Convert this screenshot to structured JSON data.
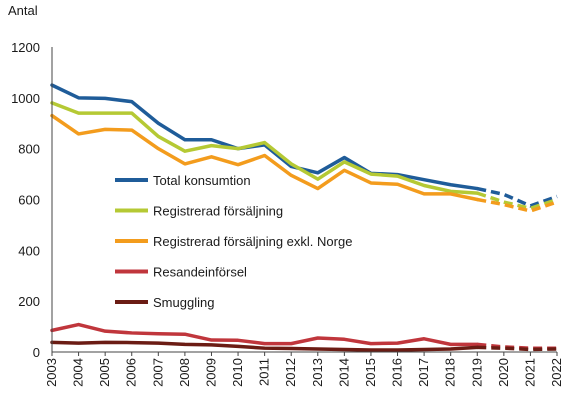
{
  "chart_data": {
    "type": "line",
    "title": "",
    "xlabel": "",
    "ylabel": "Antal",
    "ylim": [
      0,
      1200
    ],
    "yticks": [
      "0",
      "200",
      "400",
      "600",
      "800",
      "1000",
      "1200"
    ],
    "categories": [
      "2003",
      "2004",
      "2005",
      "2006",
      "2007",
      "2008",
      "2009",
      "2010",
      "2011",
      "2012",
      "2013",
      "2014",
      "2015",
      "2016",
      "2017",
      "2018",
      "2019",
      "2020",
      "2021",
      "2022"
    ],
    "grid": false,
    "legend_position": "center-left",
    "forecast_from": "2019",
    "series": [
      {
        "name": "Total konsumtion",
        "color": "#1f5c99",
        "values": [
          1050,
          1000,
          998,
          985,
          900,
          835,
          835,
          800,
          815,
          730,
          705,
          765,
          703,
          698,
          678,
          658,
          643,
          620,
          575,
          612
        ]
      },
      {
        "name": "Registrerad försäljning",
        "color": "#b5c934",
        "values": [
          980,
          940,
          940,
          940,
          848,
          790,
          812,
          800,
          824,
          740,
          680,
          748,
          700,
          692,
          655,
          632,
          625,
          590,
          565,
          600
        ]
      },
      {
        "name": "Registrerad försäljning exkl. Norge",
        "color": "#f39c1d",
        "values": [
          930,
          858,
          876,
          873,
          800,
          740,
          768,
          737,
          773,
          695,
          643,
          715,
          665,
          660,
          622,
          622,
          600,
          580,
          555,
          590
        ]
      },
      {
        "name": "Resandeinförsel",
        "color": "#c0363c",
        "values": [
          85,
          108,
          82,
          75,
          72,
          70,
          47,
          46,
          33,
          33,
          55,
          50,
          33,
          35,
          52,
          30,
          30,
          20,
          15,
          15
        ]
      },
      {
        "name": "Smuggling",
        "color": "#6b1c14",
        "values": [
          38,
          35,
          38,
          37,
          35,
          30,
          28,
          22,
          15,
          14,
          12,
          10,
          8,
          8,
          10,
          12,
          18,
          15,
          10,
          12
        ]
      }
    ]
  }
}
